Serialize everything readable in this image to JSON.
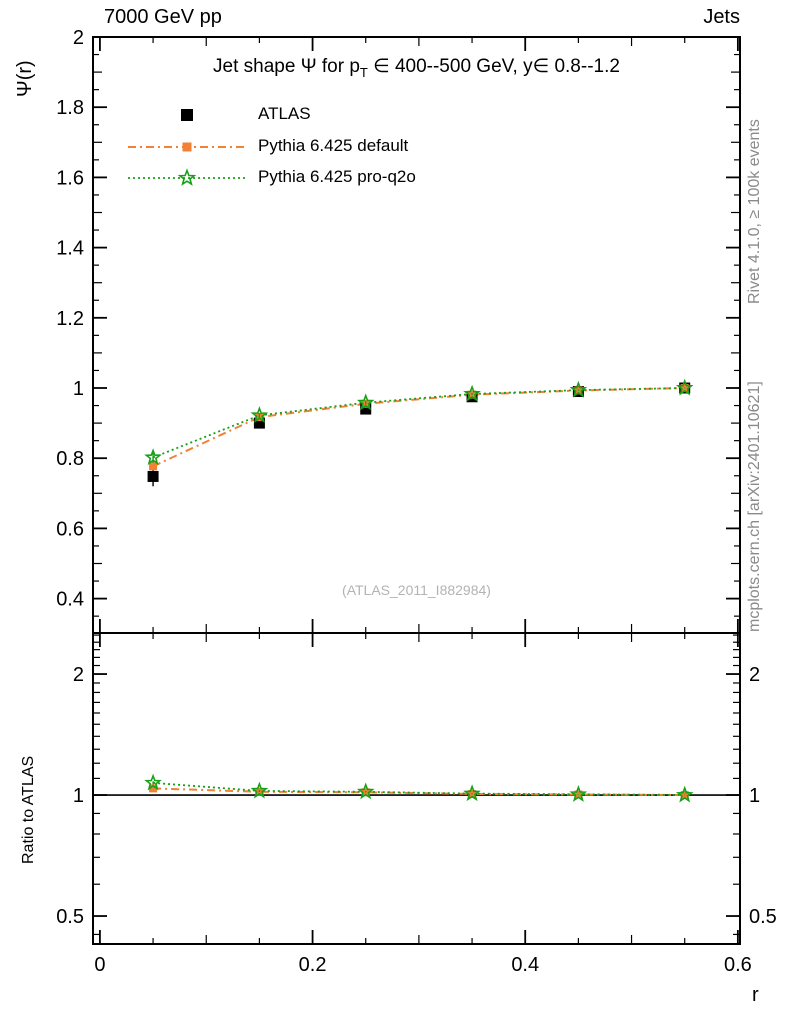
{
  "header": {
    "left": "7000 GeV pp",
    "right": "Jets"
  },
  "side_texts": {
    "top": "Rivet 4.1.0, ≥ 100k events",
    "bottom": "mcplots.cern.ch [arXiv:2401.10621]"
  },
  "watermark": "(ATLAS_2011_I882984)",
  "title_parts": {
    "part1": "Jet shape Ψ for p",
    "sub": "T",
    "part2": " ∈ 400--500 GeV, y∈ 0.8--1.2"
  },
  "labels": {
    "ylabel": "Ψ(r)",
    "xlabel": "r",
    "ratio_ylabel": "Ratio to ATLAS"
  },
  "legend": [
    {
      "label": "ATLAS",
      "marker": "filled-square",
      "line": "none",
      "color": "#000000"
    },
    {
      "label": "Pythia 6.425 default",
      "marker": "filled-square",
      "line": "dashdot",
      "color": "#f28133"
    },
    {
      "label": "Pythia 6.425 pro-q2o",
      "marker": "open-star",
      "line": "dotted",
      "color": "#17a017"
    }
  ],
  "colors": {
    "atlas": "#000000",
    "pythia_default": "#f28133",
    "pythia_proq2o": "#17a017",
    "side_text_gray": "#8a8a8a",
    "watermark_gray": "#b3b3b3"
  },
  "chart_data": {
    "type": "line",
    "title": "Jet shape Ψ for p_T ∈ 400--500 GeV, y∈ 0.8--1.2",
    "xlabel": "r",
    "ylabel": "Ψ(r)",
    "ratio_ylabel": "Ratio to ATLAS",
    "legend_position": "upper-left-inside",
    "grid": false,
    "x": [
      0.05,
      0.15,
      0.25,
      0.35,
      0.45,
      0.55
    ],
    "xlim": [
      -0.0065,
      0.602
    ],
    "ylim_main": [
      0.302,
      2.0
    ],
    "ylim_ratio": [
      0.426,
      2.53
    ],
    "ratio_scale": "log",
    "series": [
      {
        "name": "ATLAS",
        "marker": "filled-square",
        "line": "none",
        "color": "#000000",
        "values": [
          0.748,
          0.9,
          0.94,
          0.975,
          0.99,
          1.0
        ],
        "errors": [
          0.028,
          0.01,
          0.007,
          0.004,
          0.002,
          0.001
        ]
      },
      {
        "name": "Pythia 6.425 default",
        "marker": "filled-square",
        "line": "dashdot",
        "color": "#f28133",
        "values": [
          0.777,
          0.917,
          0.955,
          0.981,
          0.993,
          1.0
        ],
        "errors": [
          0.012,
          0.006,
          0.004,
          0.003,
          0.002,
          0.001
        ]
      },
      {
        "name": "Pythia 6.425 pro-q2o",
        "marker": "open-star",
        "line": "dotted",
        "color": "#17a017",
        "values": [
          0.802,
          0.922,
          0.958,
          0.983,
          0.994,
          1.0
        ],
        "errors": [
          0.015,
          0.007,
          0.005,
          0.003,
          0.002,
          0.001
        ]
      }
    ],
    "ratio_series": [
      {
        "name": "Pythia 6.425 default",
        "line": "dashdot",
        "color": "#f28133",
        "values": [
          1.039,
          1.019,
          1.016,
          1.006,
          1.003,
          1.0
        ],
        "errors": [
          0.008,
          0.005,
          0.004,
          0.003,
          0.002,
          0.002
        ]
      },
      {
        "name": "Pythia 6.425 pro-q2o",
        "line": "dotted",
        "color": "#17a017",
        "values": [
          1.072,
          1.024,
          1.019,
          1.008,
          1.004,
          1.0
        ],
        "errors": [
          0.01,
          0.006,
          0.004,
          0.003,
          0.002,
          0.002
        ]
      }
    ],
    "ratio_reference": 1.0,
    "xticks": {
      "major": [
        0,
        0.2,
        0.4,
        0.6
      ],
      "major_labels": [
        "0",
        "0.2",
        "0.4",
        "0.6"
      ],
      "medium": [
        0.1,
        0.3,
        0.5
      ],
      "minor": [
        0.05,
        0.15,
        0.25,
        0.35,
        0.45,
        0.55
      ]
    },
    "yticks_main": {
      "major": [
        0.4,
        0.6,
        0.8,
        1.0,
        1.2,
        1.4,
        1.6,
        1.8,
        2.0
      ],
      "major_labels": [
        "0.4",
        "0.6",
        "0.8",
        "1",
        "1.2",
        "1.4",
        "1.6",
        "1.8",
        "2"
      ],
      "medium": [
        0.5,
        0.7,
        0.9,
        1.1,
        1.3,
        1.5,
        1.7,
        1.9
      ],
      "minor": [
        0.35,
        0.45,
        0.55,
        0.65,
        0.75,
        0.85,
        0.95,
        1.05,
        1.15,
        1.25,
        1.35,
        1.45,
        1.55,
        1.65,
        1.75,
        1.85,
        1.95
      ]
    },
    "yticks_ratio": {
      "major": [
        0.5,
        1,
        2
      ],
      "major_labels": [
        "0.5",
        "1",
        "2"
      ],
      "minor": [
        0.45,
        0.6,
        0.7,
        0.8,
        0.9,
        1.1,
        1.2,
        1.3,
        1.4,
        1.5,
        1.6,
        1.7,
        1.8,
        1.9,
        2.1,
        2.2,
        2.3,
        2.4,
        2.5
      ]
    }
  }
}
